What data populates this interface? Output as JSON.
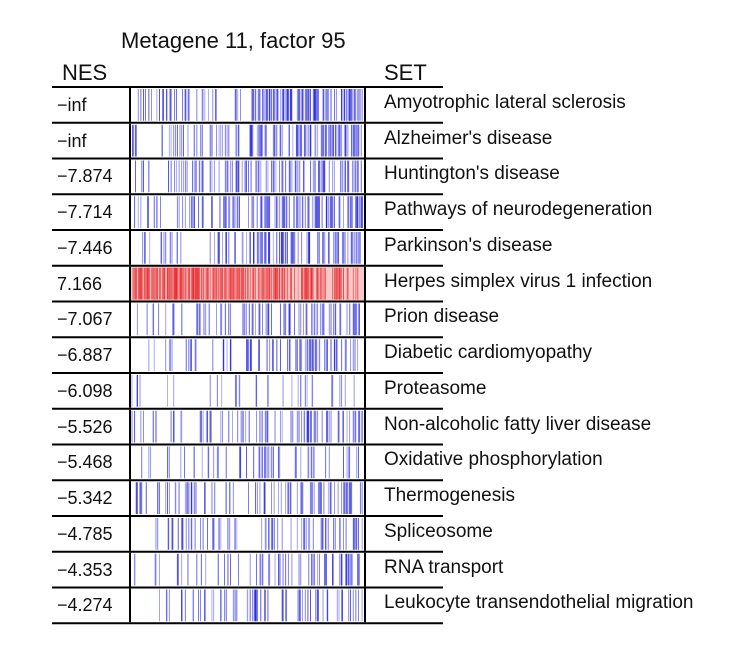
{
  "chart_data": {
    "type": "heatmap",
    "title": "Metagene 11, factor 95",
    "columns": {
      "left": "NES",
      "right": "SET"
    },
    "colors": {
      "negative": "#2b2bdc",
      "positive": "#e8262b",
      "border": "#000000"
    },
    "rows": [
      {
        "nes": "−inf",
        "set": "Amyotrophic lateral sclerosis",
        "direction": "negative",
        "density": 0.6
      },
      {
        "nes": "−inf",
        "set": "Alzheimer's disease",
        "direction": "negative",
        "density": 0.62
      },
      {
        "nes": "−7.874",
        "set": "Huntington's disease",
        "direction": "negative",
        "density": 0.58
      },
      {
        "nes": "−7.714",
        "set": "Pathways of neurodegeneration",
        "direction": "negative",
        "density": 0.65
      },
      {
        "nes": "−7.446",
        "set": "Parkinson's disease",
        "direction": "negative",
        "density": 0.45
      },
      {
        "nes": "7.166",
        "set": "Herpes simplex virus 1 infection",
        "direction": "positive",
        "density": 0.85
      },
      {
        "nes": "−7.067",
        "set": "Prion disease",
        "direction": "negative",
        "density": 0.45
      },
      {
        "nes": "−6.887",
        "set": "Diabetic cardiomyopathy",
        "direction": "negative",
        "density": 0.4
      },
      {
        "nes": "−6.098",
        "set": "Proteasome",
        "direction": "negative",
        "density": 0.12
      },
      {
        "nes": "−5.526",
        "set": "Non-alcoholic fatty liver disease",
        "direction": "negative",
        "density": 0.35
      },
      {
        "nes": "−5.468",
        "set": "Oxidative phosphorylation",
        "direction": "negative",
        "density": 0.28
      },
      {
        "nes": "−5.342",
        "set": "Thermogenesis",
        "direction": "negative",
        "density": 0.42
      },
      {
        "nes": "−4.785",
        "set": "Spliceosome",
        "direction": "negative",
        "density": 0.32
      },
      {
        "nes": "−4.353",
        "set": "RNA transport",
        "direction": "negative",
        "density": 0.34
      },
      {
        "nes": "−4.274",
        "set": "Leukocyte transendothelial migration",
        "direction": "negative",
        "density": 0.3
      }
    ]
  }
}
